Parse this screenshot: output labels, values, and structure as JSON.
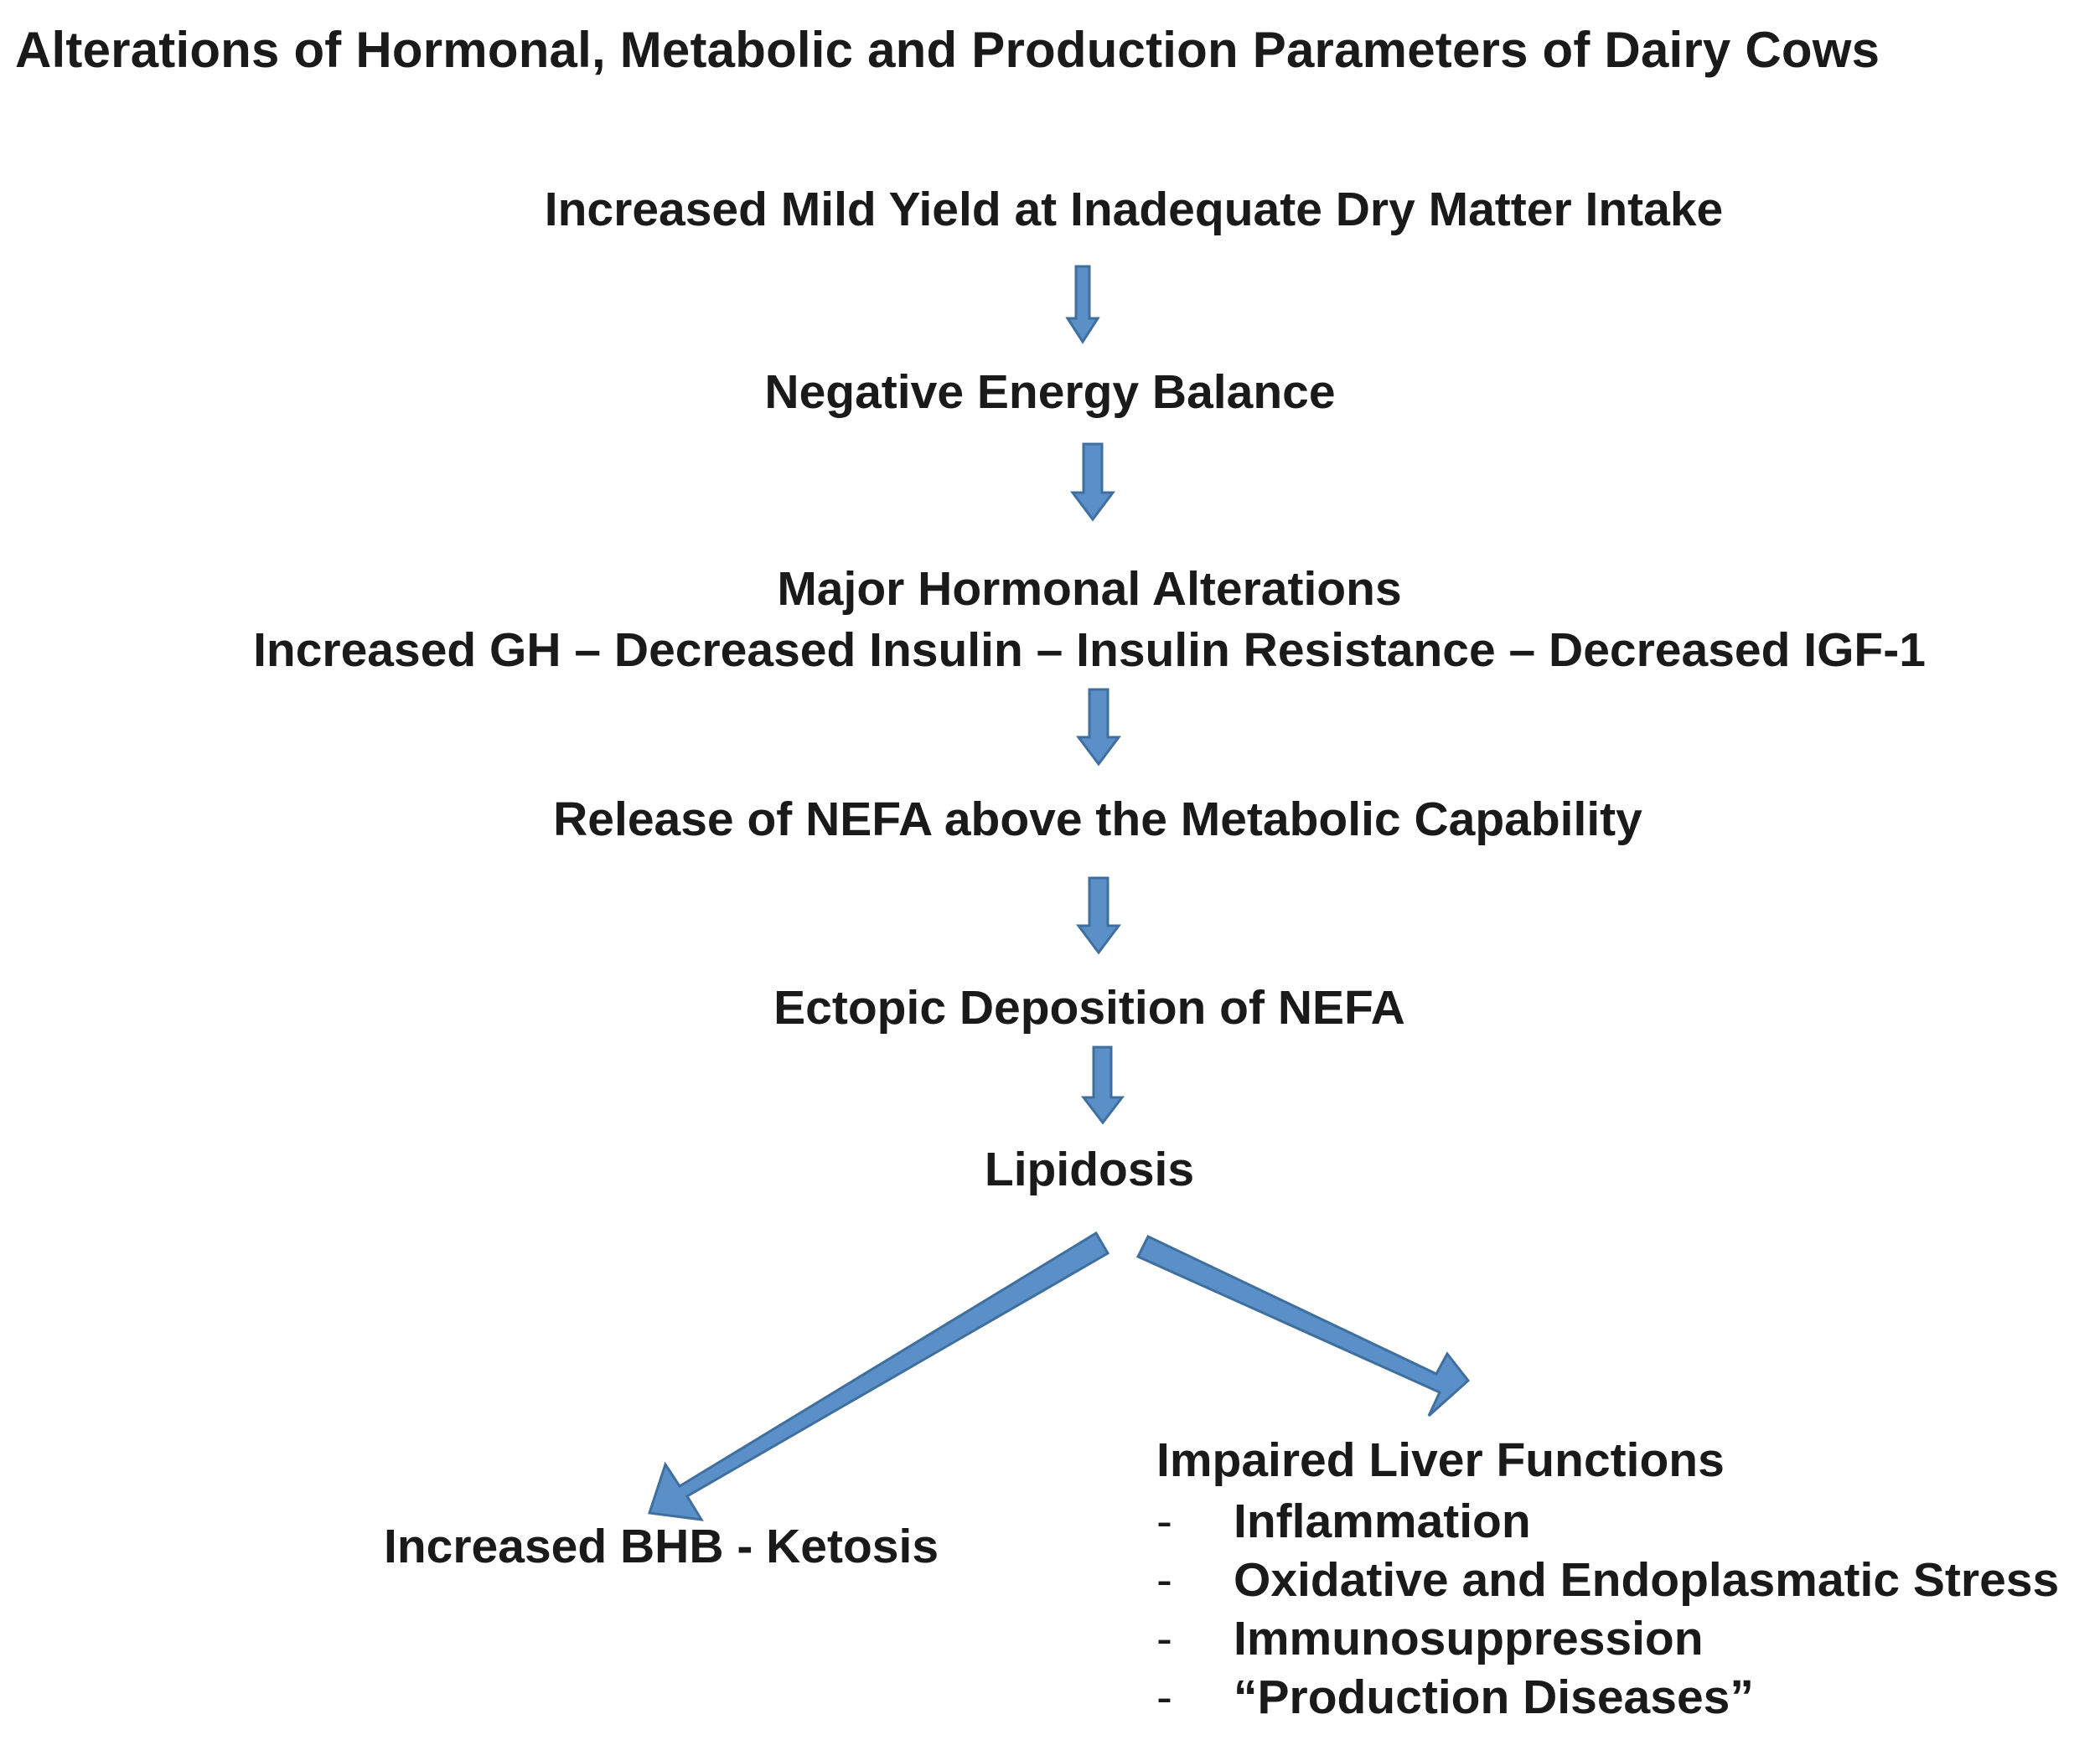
{
  "title": "Alterations of Hormonal, Metabolic and Production Parameters of Dairy Cows",
  "steps": {
    "s1": "Increased Mild Yield at Inadequate Dry Matter Intake",
    "s2": "Negative Energy Balance",
    "s3_heading": "Major Hormonal Alterations",
    "s3_detail": "Increased GH – Decreased Insulin – Insulin Resistance – Decreased IGF-1",
    "s4": "Release of NEFA above the Metabolic Capability",
    "s5": "Ectopic Deposition of NEFA",
    "s6": "Lipidosis"
  },
  "outcomes": {
    "left": "Increased BHB - Ketosis",
    "right_title": "Impaired Liver Functions",
    "bullet_marker": "-",
    "right_items": [
      "Inflammation",
      "Oxidative and Endoplasmatic Stress",
      "Immunosuppression",
      "“Production Diseases”"
    ]
  },
  "colors": {
    "arrow_fill": "#5b8fc7",
    "arrow_stroke": "#3f6f9f",
    "text": "#1a1a1a"
  }
}
